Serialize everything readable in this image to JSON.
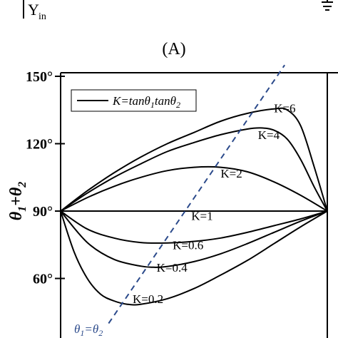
{
  "fragment": {
    "label": "Y",
    "subscript": "in"
  },
  "panel_label": "(A)",
  "chart_data": {
    "type": "line",
    "title": "",
    "xlabel": "",
    "ylabel_main": "θ",
    "ylabel_sub1": "1",
    "ylabel_plus": "+θ",
    "ylabel_sub2": "2",
    "ylabel": "θ1+θ2",
    "y_unit": "degrees",
    "ylim": [
      40,
      150
    ],
    "xlim": [
      0,
      1
    ],
    "yticks": [
      {
        "value": 90,
        "label": "90°"
      },
      {
        "value": 120,
        "label": "120°"
      },
      {
        "value": 150,
        "label": "150°"
      },
      {
        "value": 60,
        "label": "60°"
      }
    ],
    "legend": {
      "position": "top-left",
      "text_main": "K=tanθ",
      "text_sub1": "1",
      "text_mid": "tanθ",
      "text_sub2": "2",
      "full_text": "K=tanθ1tanθ2"
    },
    "series": [
      {
        "name": "K=6",
        "label_anchor": [
          0.8,
          134
        ],
        "label": "K=6",
        "x": [
          0,
          0.1,
          0.2,
          0.3,
          0.4,
          0.5,
          0.6,
          0.7,
          0.8,
          0.85,
          0.9,
          0.95,
          1
        ],
        "y": [
          90,
          99,
          107,
          114,
          120,
          125,
          130,
          133.5,
          135.5,
          135,
          128,
          110,
          90
        ]
      },
      {
        "name": "K=4",
        "label_anchor": [
          0.74,
          122
        ],
        "label": "K=4",
        "x": [
          0,
          0.1,
          0.2,
          0.3,
          0.4,
          0.5,
          0.6,
          0.7,
          0.75,
          0.8,
          0.85,
          0.9,
          0.95,
          1
        ],
        "y": [
          90,
          98,
          105,
          111,
          116.5,
          120.5,
          124,
          126.5,
          127,
          126,
          122,
          113,
          101,
          90
        ]
      },
      {
        "name": "K=2",
        "label_anchor": [
          0.6,
          105
        ],
        "label": "K=2",
        "x": [
          0,
          0.1,
          0.2,
          0.3,
          0.4,
          0.5,
          0.6,
          0.7,
          0.8,
          0.9,
          1
        ],
        "y": [
          90,
          96,
          101,
          105,
          108,
          109.5,
          109.5,
          107.5,
          103,
          97,
          90
        ]
      },
      {
        "name": "K=1",
        "label_anchor": [
          0.49,
          86
        ],
        "label": "K=1",
        "x": [
          0,
          1
        ],
        "y": [
          90,
          90
        ]
      },
      {
        "name": "K=0.6",
        "label_anchor": [
          0.42,
          73
        ],
        "label": "K=0.6",
        "x": [
          0,
          0.1,
          0.2,
          0.3,
          0.4,
          0.5,
          0.6,
          0.7,
          0.8,
          0.9,
          1
        ],
        "y": [
          90,
          82,
          78,
          76,
          75.8,
          76.5,
          78,
          80.5,
          83.5,
          86.5,
          90
        ]
      },
      {
        "name": "K=0.4",
        "label_anchor": [
          0.36,
          63
        ],
        "label": "K=0.4",
        "x": [
          0,
          0.1,
          0.2,
          0.3,
          0.35,
          0.4,
          0.5,
          0.6,
          0.7,
          0.8,
          0.9,
          1
        ],
        "y": [
          90,
          76,
          68.5,
          65.5,
          65,
          65.3,
          67.5,
          71,
          75.5,
          80.5,
          85.5,
          90
        ]
      },
      {
        "name": "K=0.2",
        "label_anchor": [
          0.27,
          49
        ],
        "label": "K=0.2",
        "x": [
          0,
          0.05,
          0.1,
          0.15,
          0.2,
          0.25,
          0.3,
          0.4,
          0.5,
          0.6,
          0.7,
          0.8,
          0.9,
          1
        ],
        "y": [
          90,
          72,
          60,
          53,
          50,
          48.5,
          48.5,
          51,
          55.5,
          61.5,
          68,
          75.5,
          83,
          90
        ]
      }
    ],
    "reference_line": {
      "label_main": "θ",
      "label_sub1": "1",
      "label_eq": "=θ",
      "label_sub2": "2",
      "label": "θ1=θ2",
      "style": "dashed",
      "color": "#2b4a8b",
      "x": [
        0.18,
        0.84
      ],
      "y": [
        40,
        155
      ]
    },
    "grid": false
  }
}
